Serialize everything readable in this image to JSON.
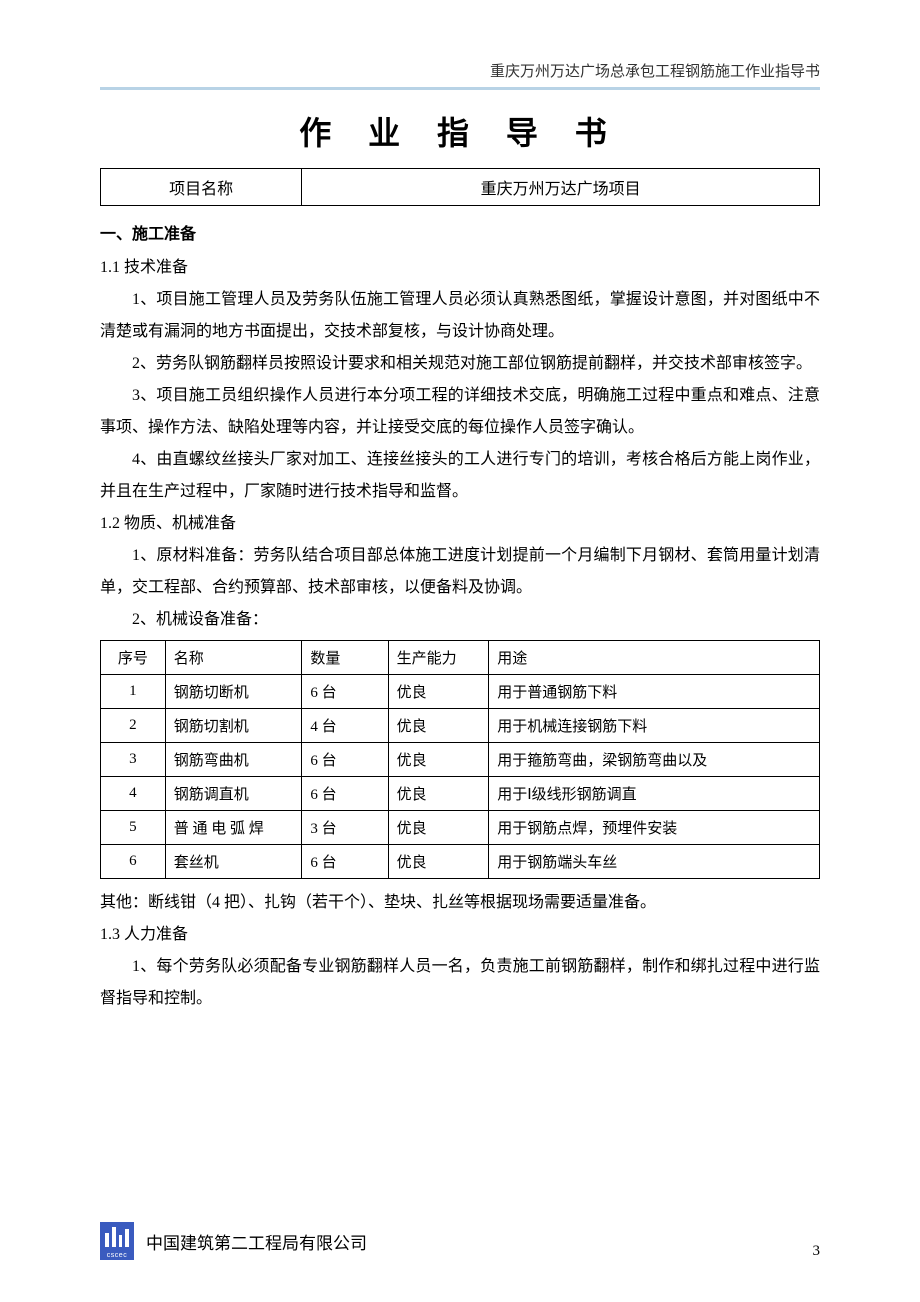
{
  "header": {
    "running_title": "重庆万州万达广场总承包工程钢筋施工作业指导书",
    "rule_color": "#b8d3e6"
  },
  "title": "作 业 指 导 书",
  "project_row": {
    "label": "项目名称",
    "value": "重庆万州万达广场项目"
  },
  "sections": {
    "s1_head": "一、施工准备",
    "s1_1_head": "1.1 技术准备",
    "s1_1_p1": "1、项目施工管理人员及劳务队伍施工管理人员必须认真熟悉图纸，掌握设计意图，并对图纸中不清楚或有漏洞的地方书面提出，交技术部复核，与设计协商处理。",
    "s1_1_p2": "2、劳务队钢筋翻样员按照设计要求和相关规范对施工部位钢筋提前翻样，并交技术部审核签字。",
    "s1_1_p3": "3、项目施工员组织操作人员进行本分项工程的详细技术交底，明确施工过程中重点和难点、注意事项、操作方法、缺陷处理等内容，并让接受交底的每位操作人员签字确认。",
    "s1_1_p4": "4、由直螺纹丝接头厂家对加工、连接丝接头的工人进行专门的培训，考核合格后方能上岗作业，并且在生产过程中，厂家随时进行技术指导和监督。",
    "s1_2_head": "1.2 物质、机械准备",
    "s1_2_p1": "1、原材料准备：劳务队结合项目部总体施工进度计划提前一个月编制下月钢材、套筒用量计划清单，交工程部、合约预算部、技术部审核，以便备料及协调。",
    "s1_2_p2": "2、机械设备准备：",
    "s1_2_other": "其他：断线钳（4 把）、扎钩（若干个）、垫块、扎丝等根据现场需要适量准备。",
    "s1_3_head": "1.3 人力准备",
    "s1_3_p1": "1、每个劳务队必须配备专业钢筋翻样人员一名，负责施工前钢筋翻样，制作和绑扎过程中进行监督指导和控制。"
  },
  "equip_table": {
    "columns": [
      "序号",
      "名称",
      "数量",
      "生产能力",
      "用途"
    ],
    "rows": [
      [
        "1",
        "钢筋切断机",
        "6 台",
        "优良",
        "用于普通钢筋下料"
      ],
      [
        "2",
        "钢筋切割机",
        "4 台",
        "优良",
        "用于机械连接钢筋下料"
      ],
      [
        "3",
        "钢筋弯曲机",
        "6 台",
        "优良",
        "用于箍筋弯曲，梁钢筋弯曲以及"
      ],
      [
        "4",
        "钢筋调直机",
        "6 台",
        "优良",
        "用于Ⅰ级线形钢筋调直"
      ],
      [
        "5",
        "普 通 电 弧 焊",
        "3 台",
        "优良",
        "用于钢筋点焊，预埋件安装"
      ],
      [
        "6",
        "套丝机",
        "6 台",
        "优良",
        "用于钢筋端头车丝"
      ]
    ],
    "border_color": "#000000",
    "font_size": 15
  },
  "footer": {
    "logo_bg": "#3a5bbf",
    "logo_text": "cscec",
    "company": "中国建筑第二工程局有限公司",
    "page_number": "3"
  }
}
